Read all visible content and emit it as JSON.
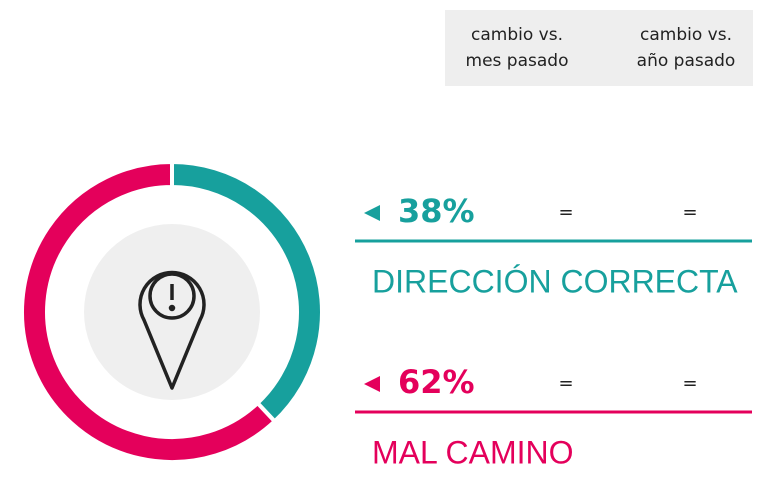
{
  "chart_data": {
    "type": "pie",
    "categories": [
      "DIRECCIÓN CORRECTA",
      "MAL CAMINO"
    ],
    "values": [
      38,
      62
    ],
    "value_labels": [
      "38%",
      "62%"
    ],
    "colors": [
      "#17a09d",
      "#e4005b"
    ],
    "columns": [
      [
        "cambio vs.",
        "mes pasado"
      ],
      [
        "cambio vs.",
        "año pasado"
      ]
    ],
    "changes": [
      [
        "=",
        "="
      ],
      [
        "=",
        "="
      ]
    ]
  }
}
